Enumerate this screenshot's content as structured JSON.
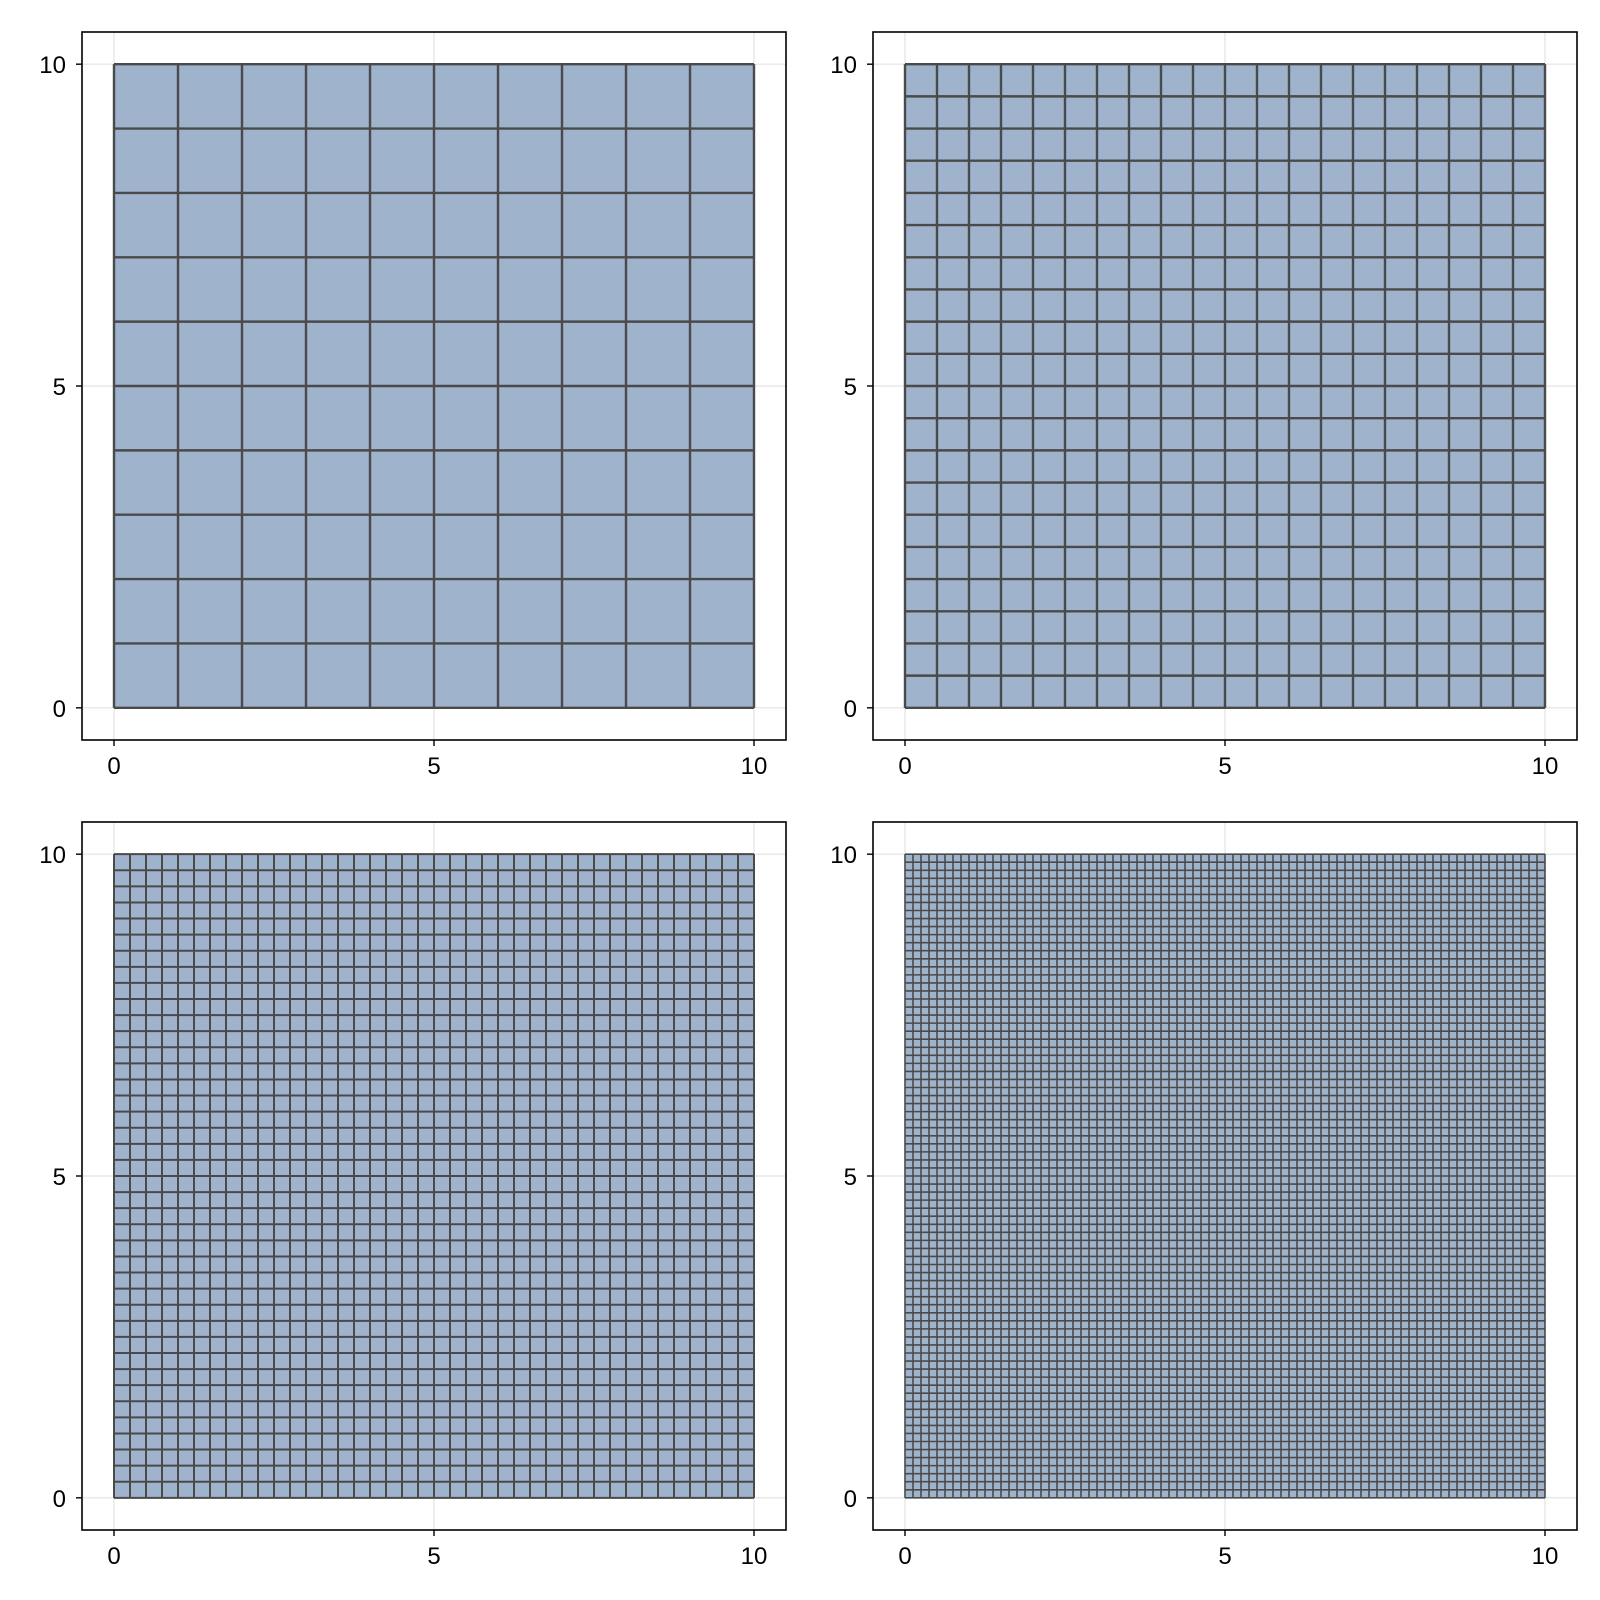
{
  "chart_data": [
    {
      "type": "mesh",
      "title": "",
      "xlabel": "",
      "ylabel": "",
      "xlim": [
        -0.5,
        10.5
      ],
      "ylim": [
        -0.5,
        10.5
      ],
      "x_ticks": [
        0,
        5,
        10
      ],
      "y_ticks": [
        0,
        5,
        10
      ],
      "x_tick_labels": [
        "0",
        "5",
        "10"
      ],
      "y_tick_labels": [
        "0",
        "5",
        "10"
      ],
      "domain": {
        "x": [
          0,
          10
        ],
        "y": [
          0,
          10
        ]
      },
      "divisions": 10,
      "grid": true
    },
    {
      "type": "mesh",
      "title": "",
      "xlabel": "",
      "ylabel": "",
      "xlim": [
        -0.5,
        10.5
      ],
      "ylim": [
        -0.5,
        10.5
      ],
      "x_ticks": [
        0,
        5,
        10
      ],
      "y_ticks": [
        0,
        5,
        10
      ],
      "x_tick_labels": [
        "0",
        "5",
        "10"
      ],
      "y_tick_labels": [
        "0",
        "5",
        "10"
      ],
      "domain": {
        "x": [
          0,
          10
        ],
        "y": [
          0,
          10
        ]
      },
      "divisions": 20,
      "grid": true
    },
    {
      "type": "mesh",
      "title": "",
      "xlabel": "",
      "ylabel": "",
      "xlim": [
        -0.5,
        10.5
      ],
      "ylim": [
        -0.5,
        10.5
      ],
      "x_ticks": [
        0,
        5,
        10
      ],
      "y_ticks": [
        0,
        5,
        10
      ],
      "x_tick_labels": [
        "0",
        "5",
        "10"
      ],
      "y_tick_labels": [
        "0",
        "5",
        "10"
      ],
      "domain": {
        "x": [
          0,
          10
        ],
        "y": [
          0,
          10
        ]
      },
      "divisions": 40,
      "grid": true
    },
    {
      "type": "mesh",
      "title": "",
      "xlabel": "",
      "ylabel": "",
      "xlim": [
        -0.5,
        10.5
      ],
      "ylim": [
        -0.5,
        10.5
      ],
      "x_ticks": [
        0,
        5,
        10
      ],
      "y_ticks": [
        0,
        5,
        10
      ],
      "x_tick_labels": [
        "0",
        "5",
        "10"
      ],
      "y_tick_labels": [
        "0",
        "5",
        "10"
      ],
      "domain": {
        "x": [
          0,
          10
        ],
        "y": [
          0,
          10
        ]
      },
      "divisions": 80,
      "grid": true
    }
  ],
  "colors": {
    "mesh_fill": "#9fb4cc",
    "mesh_edge": "#4a4a4a",
    "grid": "#e3e3e3",
    "frame": "#000000",
    "background": "#ffffff"
  }
}
